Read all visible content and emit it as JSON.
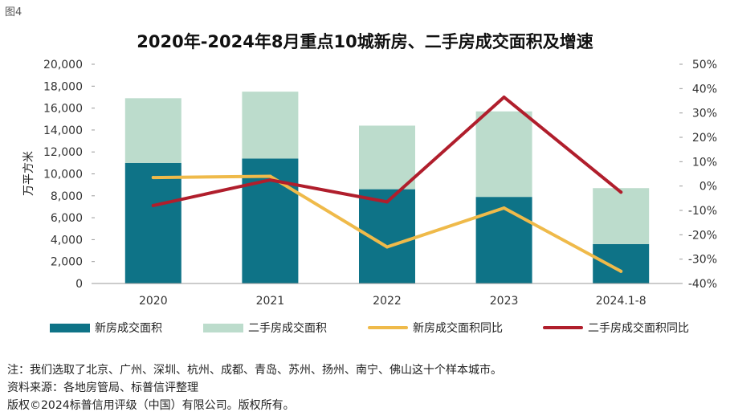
{
  "figure_label": "图4",
  "notes": [
    "注：我们选取了北京、广州、深圳、杭州、成都、青岛、苏州、扬州、南宁、佛山这十个样本城市。",
    "资料来源：各地房管局、标普信评整理",
    "版权©2024标普信用评级（中国）有限公司。版权所有。"
  ],
  "colors": {
    "new_area": "#0e7387",
    "second_area": "#bcdccc",
    "new_growth": "#efba4a",
    "second_growth": "#b01e2c"
  },
  "chart_data": {
    "type": "bar",
    "stacked": true,
    "title": "2020年-2024年8月重点10城新房、二手房成交面积及增速",
    "ylabel": "万平方米",
    "categories": [
      "2020",
      "2021",
      "2022",
      "2023",
      "2024.1-8"
    ],
    "ylim": [
      0,
      20000
    ],
    "y_ticks": [
      "0",
      "2,000",
      "4,000",
      "6,000",
      "8,000",
      "10,000",
      "12,000",
      "14,000",
      "16,000",
      "18,000",
      "20,000"
    ],
    "y2lim": [
      -40,
      50
    ],
    "y2_ticks": [
      "-40%",
      "-30%",
      "-20%",
      "-10%",
      "0%",
      "10%",
      "20%",
      "30%",
      "40%",
      "50%"
    ],
    "series": [
      {
        "name": "新房成交面积",
        "kind": "bar",
        "axis": "left",
        "values": [
          11000,
          11400,
          8600,
          7900,
          3600
        ]
      },
      {
        "name": "二手房成交面积",
        "kind": "bar",
        "axis": "left",
        "values": [
          5900,
          6100,
          5800,
          7800,
          5100
        ]
      },
      {
        "name": "新房成交面积同比",
        "kind": "line",
        "axis": "right",
        "values": [
          3.5,
          4,
          -25,
          -9,
          -35
        ]
      },
      {
        "name": "二手房成交面积同比",
        "kind": "line",
        "axis": "right",
        "values": [
          -8,
          2.5,
          -6.5,
          36.5,
          -2.5
        ]
      }
    ]
  }
}
